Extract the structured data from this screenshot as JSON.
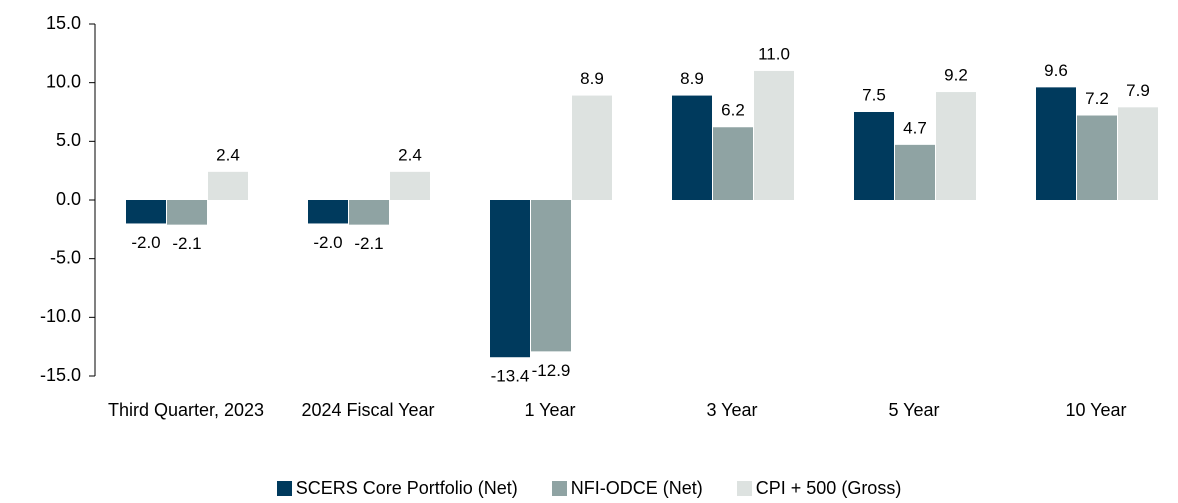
{
  "chart_data": {
    "type": "bar",
    "categories": [
      "Third Quarter, 2023",
      "2024 Fiscal Year",
      "1 Year",
      "3 Year",
      "5 Year",
      "10 Year"
    ],
    "series": [
      {
        "name": "SCERS Core Portfolio (Net)",
        "color": "#003a5d",
        "values": [
          -2.0,
          -2.0,
          -13.4,
          8.9,
          7.5,
          9.6
        ],
        "value_labels": [
          "-2.0",
          "-2.0",
          "-13.4",
          "8.9",
          "7.5",
          "9.6"
        ]
      },
      {
        "name": "NFI-ODCE (Net)",
        "color": "#8fa3a3",
        "values": [
          -2.1,
          -2.1,
          -12.9,
          6.2,
          4.7,
          7.2
        ],
        "value_labels": [
          "-2.1",
          "-2.1",
          "-12.9",
          "6.2",
          "4.7",
          "7.2"
        ]
      },
      {
        "name": "CPI + 500 (Gross)",
        "color": "#dde2e0",
        "values": [
          2.4,
          2.4,
          8.9,
          11.0,
          9.2,
          7.9
        ],
        "value_labels": [
          "2.4",
          "2.4",
          "8.9",
          "11.0",
          "9.2",
          "7.9"
        ]
      }
    ],
    "ylim": [
      -15,
      15
    ],
    "yticks": [
      {
        "value": -15,
        "label": "-15.0"
      },
      {
        "value": -10,
        "label": "-10.0"
      },
      {
        "value": -5,
        "label": "-5.0"
      },
      {
        "value": 0,
        "label": "0.0"
      },
      {
        "value": 5,
        "label": "5.0"
      },
      {
        "value": 10,
        "label": "10.0"
      },
      {
        "value": 15,
        "label": "15.0"
      }
    ],
    "grid": false,
    "legend": "bottom"
  }
}
